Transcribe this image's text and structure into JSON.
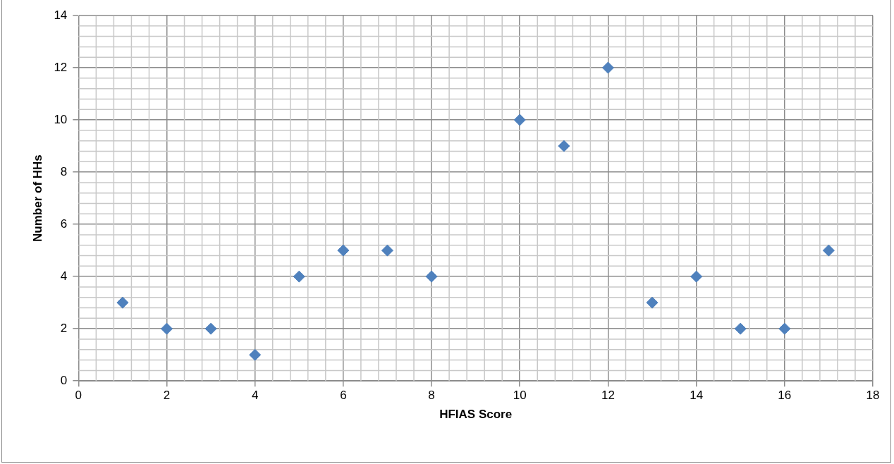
{
  "chart_data": {
    "type": "scatter",
    "xlabel": "HFIAS Score",
    "ylabel": "Number of HHs",
    "x": [
      1,
      2,
      3,
      4,
      5,
      6,
      7,
      8,
      10,
      11,
      12,
      13,
      14,
      15,
      16,
      17
    ],
    "series": [
      {
        "color": "#4f81bd",
        "values": [
          3,
          2,
          2,
          1,
          4,
          5,
          5,
          4,
          10,
          9,
          12,
          3,
          4,
          2,
          2,
          5
        ]
      }
    ],
    "xlim": [
      0,
      18
    ],
    "xticks": [
      0,
      2,
      4,
      6,
      8,
      10,
      12,
      14,
      16,
      18
    ],
    "ylim": [
      0,
      14
    ],
    "yticks": [
      0,
      2,
      4,
      6,
      8,
      10,
      12,
      14
    ],
    "grid": true,
    "legend": false,
    "marker": "diamond"
  }
}
